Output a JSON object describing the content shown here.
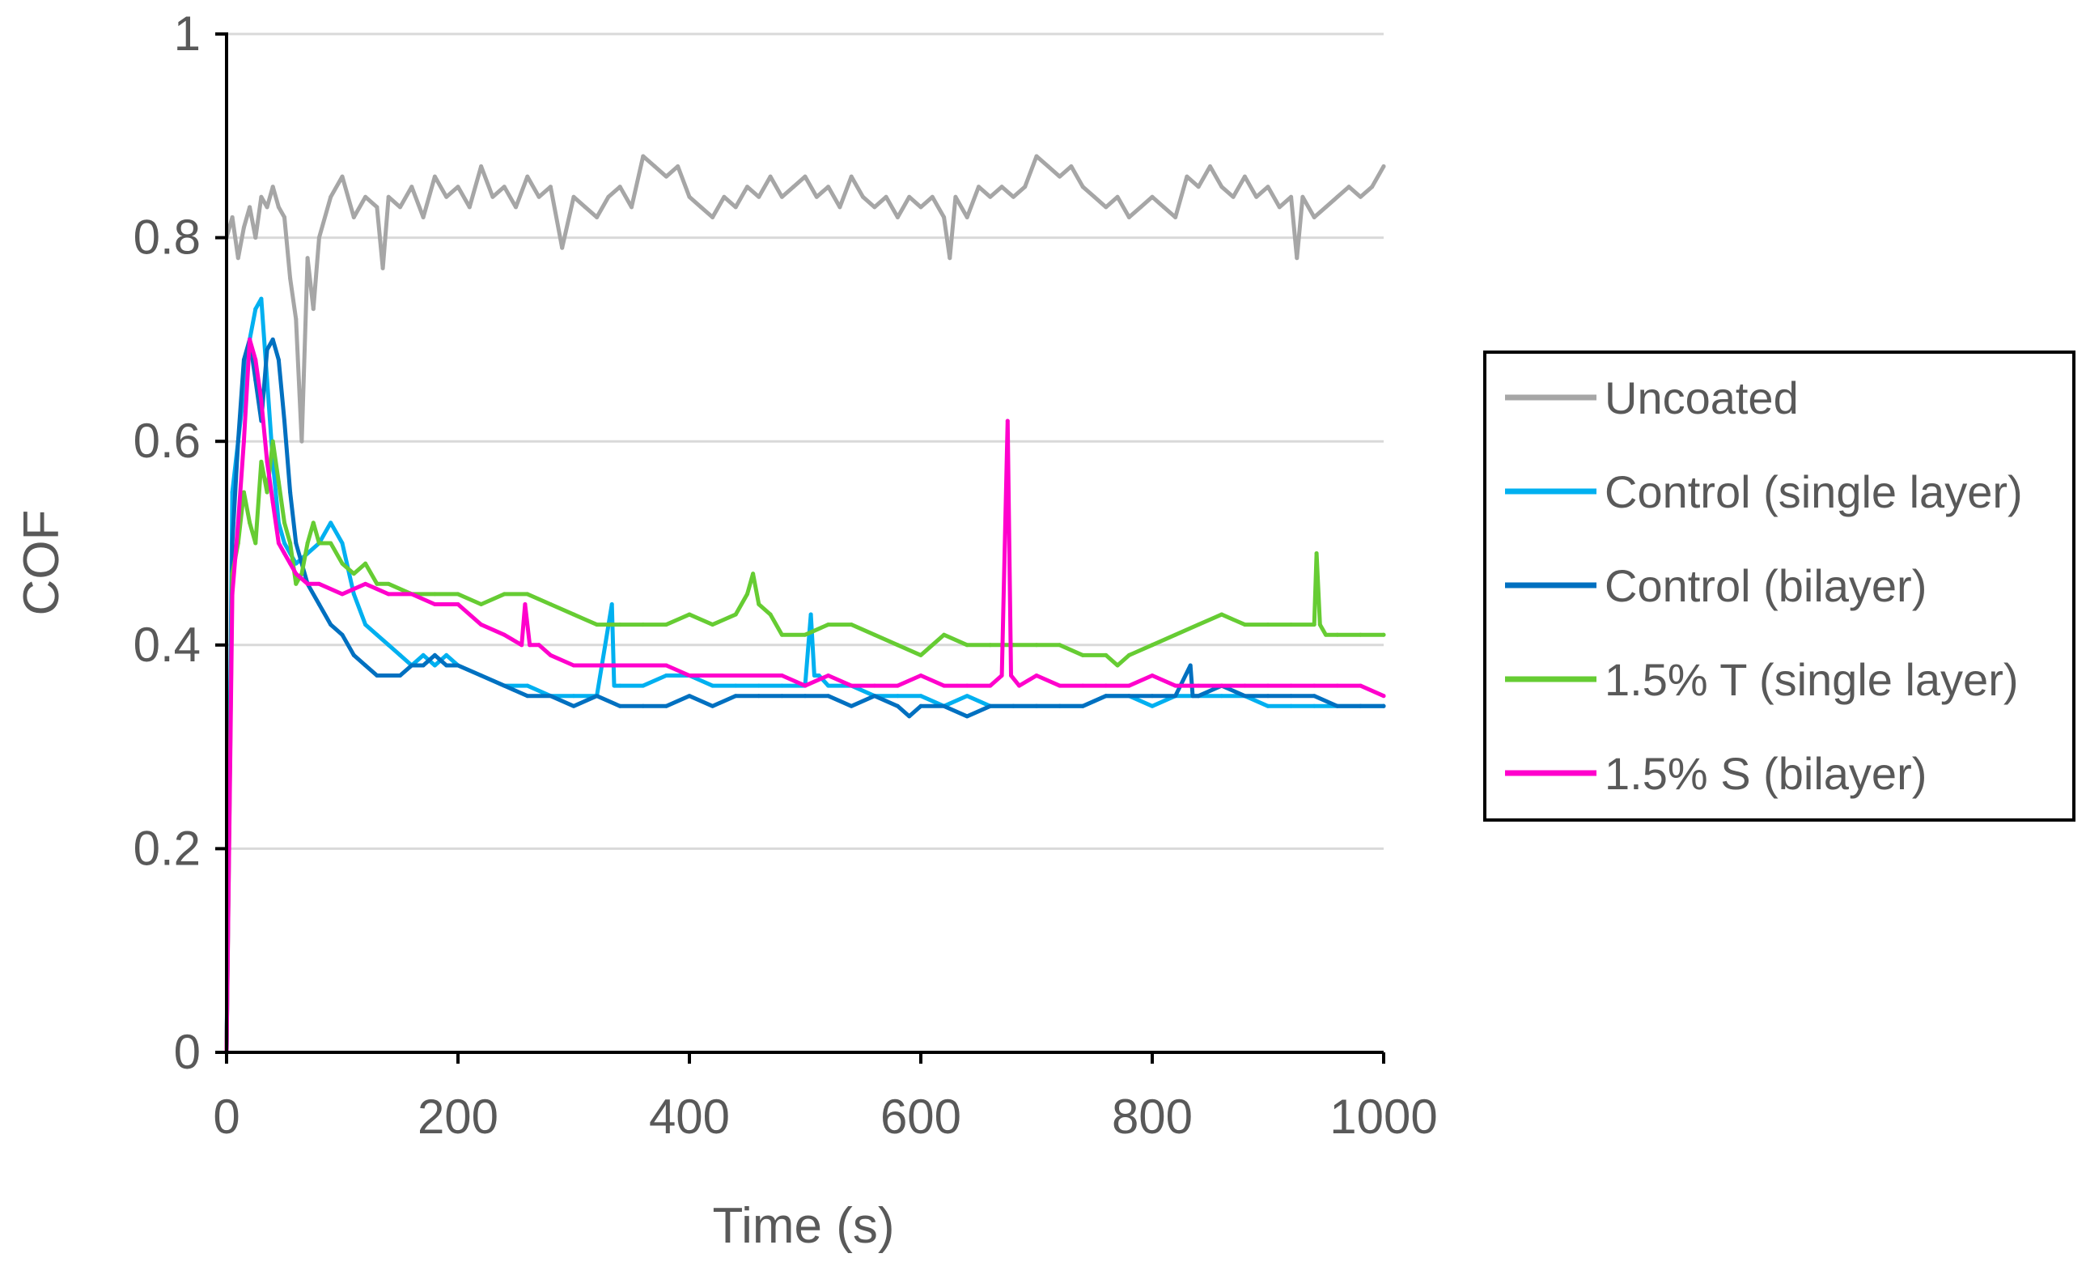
{
  "chart_data": {
    "type": "line",
    "title": "",
    "xlabel": "Time (s)",
    "ylabel": "COF",
    "xlim": [
      0,
      1000
    ],
    "ylim": [
      0,
      1
    ],
    "xticks": [
      0,
      200,
      400,
      600,
      800,
      1000
    ],
    "yticks": [
      0,
      0.2,
      0.4,
      0.6,
      0.8,
      1
    ],
    "x_tick_labels": [
      "0",
      "200",
      "400",
      "600",
      "800",
      "1000"
    ],
    "y_tick_labels": [
      "0",
      "0.2",
      "0.4",
      "0.6",
      "0.8",
      "1"
    ],
    "grid": "horizontal",
    "legend_position": "right",
    "series": [
      {
        "name": "Uncoated",
        "color": "#a6a6a6",
        "x": [
          0,
          5,
          10,
          15,
          20,
          25,
          30,
          35,
          40,
          45,
          50,
          55,
          60,
          65,
          70,
          75,
          80,
          90,
          100,
          110,
          120,
          130,
          135,
          140,
          150,
          160,
          170,
          180,
          190,
          200,
          210,
          220,
          230,
          240,
          250,
          260,
          270,
          280,
          290,
          300,
          310,
          320,
          330,
          340,
          350,
          360,
          370,
          380,
          390,
          400,
          410,
          420,
          430,
          440,
          450,
          460,
          470,
          480,
          490,
          500,
          510,
          520,
          530,
          540,
          550,
          560,
          570,
          580,
          590,
          600,
          610,
          620,
          625,
          630,
          640,
          650,
          660,
          670,
          680,
          690,
          700,
          710,
          720,
          730,
          740,
          750,
          760,
          770,
          780,
          790,
          800,
          810,
          820,
          830,
          840,
          850,
          860,
          870,
          880,
          890,
          900,
          910,
          920,
          925,
          930,
          940,
          950,
          960,
          970,
          980,
          990,
          1000
        ],
        "values": [
          0.8,
          0.82,
          0.78,
          0.81,
          0.83,
          0.8,
          0.84,
          0.83,
          0.85,
          0.83,
          0.82,
          0.76,
          0.72,
          0.6,
          0.78,
          0.73,
          0.8,
          0.84,
          0.86,
          0.82,
          0.84,
          0.83,
          0.77,
          0.84,
          0.83,
          0.85,
          0.82,
          0.86,
          0.84,
          0.85,
          0.83,
          0.87,
          0.84,
          0.85,
          0.83,
          0.86,
          0.84,
          0.85,
          0.79,
          0.84,
          0.83,
          0.82,
          0.84,
          0.85,
          0.83,
          0.88,
          0.87,
          0.86,
          0.87,
          0.84,
          0.83,
          0.82,
          0.84,
          0.83,
          0.85,
          0.84,
          0.86,
          0.84,
          0.85,
          0.86,
          0.84,
          0.85,
          0.83,
          0.86,
          0.84,
          0.83,
          0.84,
          0.82,
          0.84,
          0.83,
          0.84,
          0.82,
          0.78,
          0.84,
          0.82,
          0.85,
          0.84,
          0.85,
          0.84,
          0.85,
          0.88,
          0.87,
          0.86,
          0.87,
          0.85,
          0.84,
          0.83,
          0.84,
          0.82,
          0.83,
          0.84,
          0.83,
          0.82,
          0.86,
          0.85,
          0.87,
          0.85,
          0.84,
          0.86,
          0.84,
          0.85,
          0.83,
          0.84,
          0.78,
          0.84,
          0.82,
          0.83,
          0.84,
          0.85,
          0.84,
          0.85,
          0.87
        ]
      },
      {
        "name": "Control (single layer)",
        "color": "#00b0f0",
        "x": [
          0,
          5,
          10,
          15,
          20,
          25,
          30,
          35,
          40,
          45,
          50,
          55,
          60,
          70,
          80,
          90,
          100,
          110,
          120,
          130,
          140,
          150,
          160,
          170,
          180,
          190,
          200,
          220,
          240,
          260,
          280,
          300,
          320,
          333,
          335,
          340,
          360,
          380,
          400,
          420,
          440,
          460,
          480,
          500,
          505,
          508,
          512,
          520,
          540,
          560,
          580,
          600,
          620,
          640,
          660,
          680,
          700,
          720,
          740,
          760,
          780,
          800,
          820,
          840,
          860,
          880,
          900,
          920,
          940,
          960,
          980,
          1000
        ],
        "values": [
          0.0,
          0.55,
          0.6,
          0.65,
          0.7,
          0.73,
          0.74,
          0.66,
          0.58,
          0.52,
          0.5,
          0.49,
          0.48,
          0.49,
          0.5,
          0.52,
          0.5,
          0.45,
          0.42,
          0.41,
          0.4,
          0.39,
          0.38,
          0.39,
          0.38,
          0.39,
          0.38,
          0.37,
          0.36,
          0.36,
          0.35,
          0.35,
          0.35,
          0.44,
          0.36,
          0.36,
          0.36,
          0.37,
          0.37,
          0.36,
          0.36,
          0.36,
          0.36,
          0.36,
          0.43,
          0.37,
          0.37,
          0.36,
          0.36,
          0.35,
          0.35,
          0.35,
          0.34,
          0.35,
          0.34,
          0.34,
          0.34,
          0.34,
          0.34,
          0.35,
          0.35,
          0.34,
          0.35,
          0.35,
          0.35,
          0.35,
          0.34,
          0.34,
          0.34,
          0.34,
          0.34,
          0.34
        ]
      },
      {
        "name": "Control (bilayer)",
        "color": "#0070c0",
        "x": [
          0,
          5,
          10,
          15,
          20,
          25,
          30,
          35,
          40,
          45,
          50,
          55,
          60,
          70,
          80,
          90,
          100,
          110,
          120,
          130,
          140,
          150,
          160,
          170,
          180,
          190,
          200,
          220,
          240,
          260,
          280,
          300,
          320,
          340,
          360,
          380,
          400,
          420,
          440,
          460,
          480,
          500,
          520,
          540,
          560,
          580,
          590,
          600,
          620,
          640,
          660,
          680,
          700,
          720,
          740,
          760,
          780,
          800,
          820,
          833,
          835,
          840,
          860,
          880,
          900,
          920,
          940,
          960,
          980,
          1000
        ],
        "values": [
          0.0,
          0.5,
          0.6,
          0.68,
          0.7,
          0.66,
          0.62,
          0.69,
          0.7,
          0.68,
          0.62,
          0.55,
          0.5,
          0.46,
          0.44,
          0.42,
          0.41,
          0.39,
          0.38,
          0.37,
          0.37,
          0.37,
          0.38,
          0.38,
          0.39,
          0.38,
          0.38,
          0.37,
          0.36,
          0.35,
          0.35,
          0.34,
          0.35,
          0.34,
          0.34,
          0.34,
          0.35,
          0.34,
          0.35,
          0.35,
          0.35,
          0.35,
          0.35,
          0.34,
          0.35,
          0.34,
          0.33,
          0.34,
          0.34,
          0.33,
          0.34,
          0.34,
          0.34,
          0.34,
          0.34,
          0.35,
          0.35,
          0.35,
          0.35,
          0.38,
          0.35,
          0.35,
          0.36,
          0.35,
          0.35,
          0.35,
          0.35,
          0.34,
          0.34,
          0.34
        ]
      },
      {
        "name": "1.5% T (single layer)",
        "color": "#66cc33",
        "x": [
          0,
          5,
          10,
          15,
          20,
          25,
          30,
          35,
          40,
          45,
          50,
          55,
          60,
          65,
          70,
          75,
          80,
          90,
          100,
          110,
          120,
          130,
          140,
          160,
          180,
          200,
          220,
          240,
          260,
          280,
          300,
          320,
          340,
          360,
          380,
          400,
          420,
          440,
          450,
          455,
          460,
          470,
          480,
          500,
          520,
          540,
          560,
          580,
          600,
          620,
          640,
          660,
          680,
          700,
          720,
          740,
          760,
          770,
          780,
          800,
          820,
          840,
          860,
          880,
          900,
          920,
          940,
          942,
          945,
          950,
          960,
          980,
          1000
        ],
        "values": [
          0.0,
          0.47,
          0.5,
          0.55,
          0.52,
          0.5,
          0.58,
          0.55,
          0.6,
          0.56,
          0.52,
          0.5,
          0.46,
          0.47,
          0.5,
          0.52,
          0.5,
          0.5,
          0.48,
          0.47,
          0.48,
          0.46,
          0.46,
          0.45,
          0.45,
          0.45,
          0.44,
          0.45,
          0.45,
          0.44,
          0.43,
          0.42,
          0.42,
          0.42,
          0.42,
          0.43,
          0.42,
          0.43,
          0.45,
          0.47,
          0.44,
          0.43,
          0.41,
          0.41,
          0.42,
          0.42,
          0.41,
          0.4,
          0.39,
          0.41,
          0.4,
          0.4,
          0.4,
          0.4,
          0.4,
          0.39,
          0.39,
          0.38,
          0.39,
          0.4,
          0.41,
          0.42,
          0.43,
          0.42,
          0.42,
          0.42,
          0.42,
          0.49,
          0.42,
          0.41,
          0.41,
          0.41,
          0.41
        ]
      },
      {
        "name": "1.5% S (bilayer)",
        "color": "#ff00cc",
        "x": [
          0,
          5,
          10,
          15,
          20,
          25,
          30,
          35,
          40,
          45,
          50,
          55,
          60,
          70,
          80,
          100,
          120,
          140,
          160,
          180,
          200,
          220,
          240,
          255,
          258,
          262,
          270,
          280,
          300,
          320,
          340,
          360,
          380,
          400,
          420,
          440,
          460,
          480,
          500,
          520,
          540,
          560,
          580,
          600,
          620,
          640,
          660,
          670,
          675,
          678,
          685,
          700,
          720,
          740,
          760,
          780,
          800,
          820,
          840,
          860,
          880,
          900,
          920,
          940,
          960,
          980,
          1000
        ],
        "values": [
          0.0,
          0.45,
          0.52,
          0.6,
          0.7,
          0.68,
          0.64,
          0.58,
          0.54,
          0.5,
          0.49,
          0.48,
          0.47,
          0.46,
          0.46,
          0.45,
          0.46,
          0.45,
          0.45,
          0.44,
          0.44,
          0.42,
          0.41,
          0.4,
          0.44,
          0.4,
          0.4,
          0.39,
          0.38,
          0.38,
          0.38,
          0.38,
          0.38,
          0.37,
          0.37,
          0.37,
          0.37,
          0.37,
          0.36,
          0.37,
          0.36,
          0.36,
          0.36,
          0.37,
          0.36,
          0.36,
          0.36,
          0.37,
          0.62,
          0.37,
          0.36,
          0.37,
          0.36,
          0.36,
          0.36,
          0.36,
          0.37,
          0.36,
          0.36,
          0.36,
          0.36,
          0.36,
          0.36,
          0.36,
          0.36,
          0.36,
          0.35
        ]
      }
    ]
  }
}
